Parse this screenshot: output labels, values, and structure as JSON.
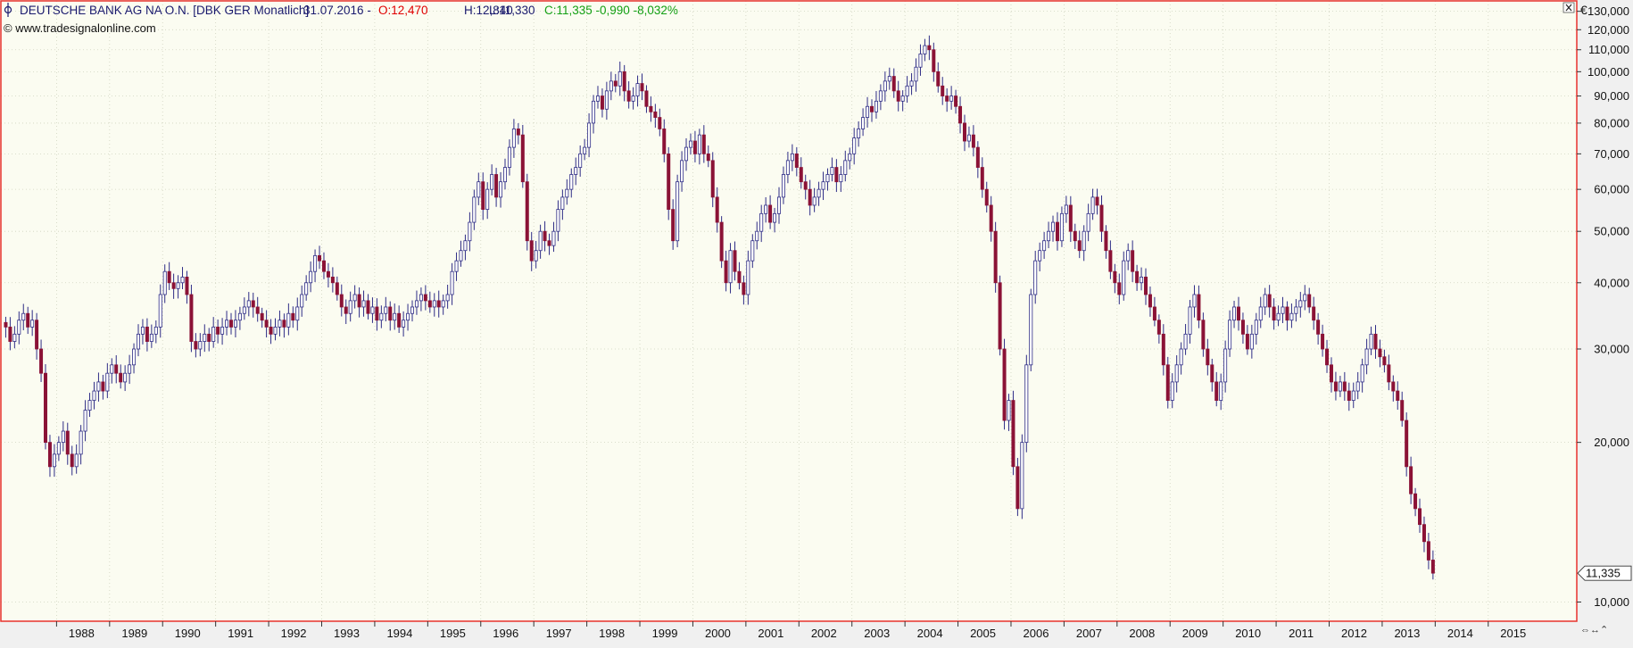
{
  "header": {
    "instrument": "DEUTSCHE BANK AG NA O.N. [DBK GER  Monatlich]",
    "date": "31.07.2016 -",
    "open": "O:12,470",
    "high": "H:12,840",
    "low": "L:11,330",
    "close_change": "C:11,335 -0,990 -8,032%",
    "copyright": "© www.tradesignalonline.com",
    "currency": "€",
    "close_icon": "close-icon",
    "nav_arrows": "⇔↔⌃"
  },
  "colors": {
    "background": "#fbfcf1",
    "frame": "#e8322c",
    "candle_up": "#2e2c86",
    "candle_down": "#8b1236",
    "text_dark": "#1a1a6e",
    "text_red": "#e00000",
    "text_green": "#14a014",
    "grid": "#d0d3c0"
  },
  "chart_data": {
    "type": "candlestick",
    "scale": "log",
    "ylim": [
      9.2,
      136
    ],
    "yticks": [
      10,
      20,
      30,
      40,
      50,
      60,
      70,
      80,
      90,
      100,
      110,
      120,
      130
    ],
    "ytick_labels": [
      "10,000",
      "20,000",
      "30,000",
      "40,000",
      "50,000",
      "60,000",
      "70,000",
      "80,000",
      "90,000",
      "100,000",
      "110,000",
      "120,000",
      "130,000"
    ],
    "xlim_years": [
      1986.95,
      2016.67
    ],
    "xticks": [
      1988,
      1989,
      1990,
      1991,
      1992,
      1993,
      1994,
      1995,
      1996,
      1997,
      1998,
      1999,
      2000,
      2001,
      2002,
      2003,
      2004,
      2005,
      2006,
      2007,
      2008,
      2009,
      2010,
      2011,
      2012,
      2013,
      2014,
      2015
    ],
    "xtick_labels": [
      "1988",
      "1989",
      "1990",
      "1991",
      "1992",
      "1993",
      "1994",
      "1995",
      "1996",
      "1997",
      "1998",
      "1999",
      "2000",
      "2001",
      "2002",
      "2003",
      "2004",
      "2005",
      "2006",
      "2007",
      "2008",
      "2009",
      "2010",
      "2011",
      "2012",
      "2013",
      "2014",
      "2015"
    ],
    "last_price": 11.335,
    "last_price_label": "11,335",
    "start_month": "1987-01",
    "monthly_close": [
      33,
      31,
      32,
      34,
      35,
      33,
      34,
      30,
      27,
      20,
      18,
      19,
      20,
      21,
      19,
      18,
      19,
      21,
      23,
      24,
      25,
      26,
      25,
      27,
      28,
      27,
      26,
      27,
      28,
      30,
      32,
      33,
      31,
      32,
      33,
      38,
      42,
      40,
      39,
      40,
      41,
      38,
      31,
      30,
      31,
      32,
      31,
      33,
      32,
      33,
      34,
      33,
      34,
      35,
      36,
      37,
      36,
      35,
      34,
      33,
      32,
      33,
      34,
      33,
      35,
      34,
      36,
      38,
      40,
      42,
      45,
      44,
      42,
      41,
      40,
      38,
      36,
      35,
      37,
      38,
      36,
      37,
      35,
      36,
      34,
      35,
      36,
      34,
      35,
      33,
      34,
      35,
      36,
      37,
      38,
      37,
      36,
      37,
      36,
      37,
      38,
      42,
      44,
      46,
      48,
      52,
      58,
      62,
      55,
      60,
      64,
      58,
      62,
      66,
      72,
      78,
      76,
      62,
      48,
      44,
      46,
      50,
      48,
      47,
      50,
      55,
      58,
      60,
      64,
      66,
      70,
      72,
      80,
      88,
      90,
      85,
      92,
      96,
      94,
      100,
      92,
      88,
      90,
      95,
      92,
      86,
      84,
      82,
      78,
      70,
      55,
      48,
      62,
      68,
      72,
      74,
      70,
      76,
      70,
      68,
      58,
      52,
      44,
      40,
      46,
      42,
      40,
      38,
      44,
      48,
      50,
      54,
      56,
      52,
      54,
      58,
      64,
      68,
      70,
      66,
      62,
      60,
      56,
      58,
      60,
      62,
      64,
      66,
      62,
      64,
      68,
      70,
      75,
      78,
      82,
      86,
      84,
      88,
      92,
      96,
      98,
      92,
      88,
      90,
      94,
      96,
      102,
      108,
      112,
      110,
      100,
      94,
      90,
      88,
      90,
      86,
      80,
      74,
      76,
      72,
      66,
      60,
      56,
      50,
      40,
      30,
      22,
      24,
      18,
      15,
      20,
      28,
      38,
      44,
      46,
      48,
      50,
      52,
      48,
      54,
      56,
      50,
      48,
      46,
      50,
      54,
      58,
      56,
      50,
      46,
      42,
      40,
      38,
      44,
      46,
      42,
      40,
      41,
      38,
      36,
      34,
      32,
      28,
      24,
      26,
      28,
      30,
      32,
      36,
      38,
      34,
      30,
      28,
      26,
      24,
      26,
      30,
      34,
      36,
      34,
      32,
      30,
      32,
      34,
      36,
      38,
      36,
      34,
      35,
      36,
      34,
      35,
      36,
      37,
      38,
      36,
      34,
      32,
      30,
      28,
      26,
      25,
      26,
      25,
      24,
      25,
      26,
      28,
      30,
      32,
      30,
      29,
      28,
      26,
      25,
      24,
      22,
      18,
      16,
      15,
      14,
      13,
      12,
      11.335
    ]
  }
}
